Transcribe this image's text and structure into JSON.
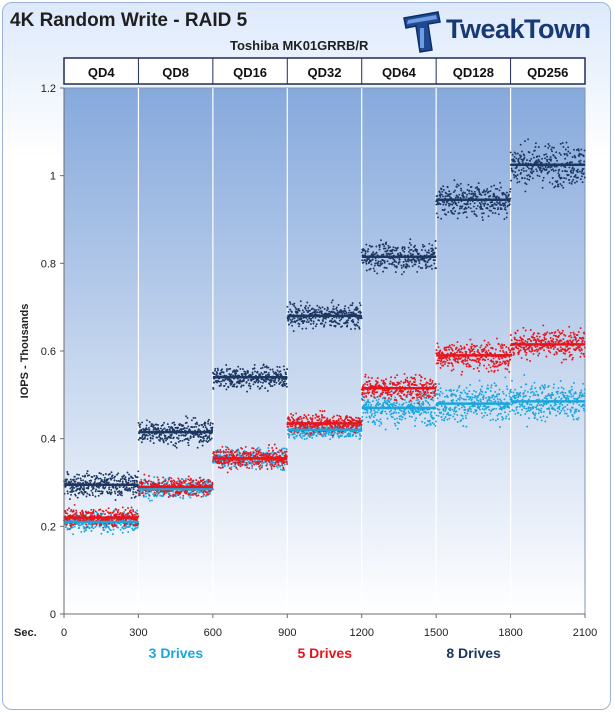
{
  "header": {
    "title": "4K Random Write - RAID 5",
    "subtitle": "Toshiba MK01GRRB/R",
    "logo_text": "TweakTown"
  },
  "colors": {
    "drives3": "#1aa6dd",
    "drives5": "#e8141c",
    "drives8": "#1c3660",
    "plot_top": "#86a9dc",
    "plot_bottom": "#ffffff",
    "grid": "#ffffff"
  },
  "chart_data": {
    "type": "scatter",
    "ylabel": "IOPS - Thousands",
    "xlabel": "Sec.",
    "xlim": [
      0,
      2100
    ],
    "ylim": [
      0,
      1.2
    ],
    "x_ticks": [
      0,
      300,
      600,
      900,
      1200,
      1500,
      1800,
      2100
    ],
    "y_ticks": [
      0,
      0.2,
      0.4,
      0.6,
      0.8,
      1,
      1.2
    ],
    "segments": [
      {
        "label": "QD4",
        "start": 0,
        "end": 300
      },
      {
        "label": "QD8",
        "start": 300,
        "end": 600
      },
      {
        "label": "QD16",
        "start": 600,
        "end": 900
      },
      {
        "label": "QD32",
        "start": 900,
        "end": 1200
      },
      {
        "label": "QD64",
        "start": 1200,
        "end": 1500
      },
      {
        "label": "QD128",
        "start": 1500,
        "end": 1800
      },
      {
        "label": "QD256",
        "start": 1800,
        "end": 2100
      }
    ],
    "series": [
      {
        "name": "3 Drives",
        "color_key": "drives3",
        "means": [
          0.21,
          0.285,
          0.355,
          0.42,
          0.47,
          0.48,
          0.485
        ],
        "spread": [
          0.02,
          0.02,
          0.02,
          0.02,
          0.035,
          0.04,
          0.04
        ]
      },
      {
        "name": "5 Drives",
        "color_key": "drives5",
        "means": [
          0.22,
          0.29,
          0.355,
          0.435,
          0.515,
          0.59,
          0.615
        ],
        "spread": [
          0.02,
          0.02,
          0.02,
          0.02,
          0.025,
          0.03,
          0.03
        ]
      },
      {
        "name": "8 Drives",
        "color_key": "drives8",
        "means": [
          0.295,
          0.415,
          0.54,
          0.68,
          0.815,
          0.945,
          1.025
        ],
        "spread": [
          0.025,
          0.025,
          0.025,
          0.025,
          0.03,
          0.035,
          0.045
        ]
      }
    ]
  }
}
